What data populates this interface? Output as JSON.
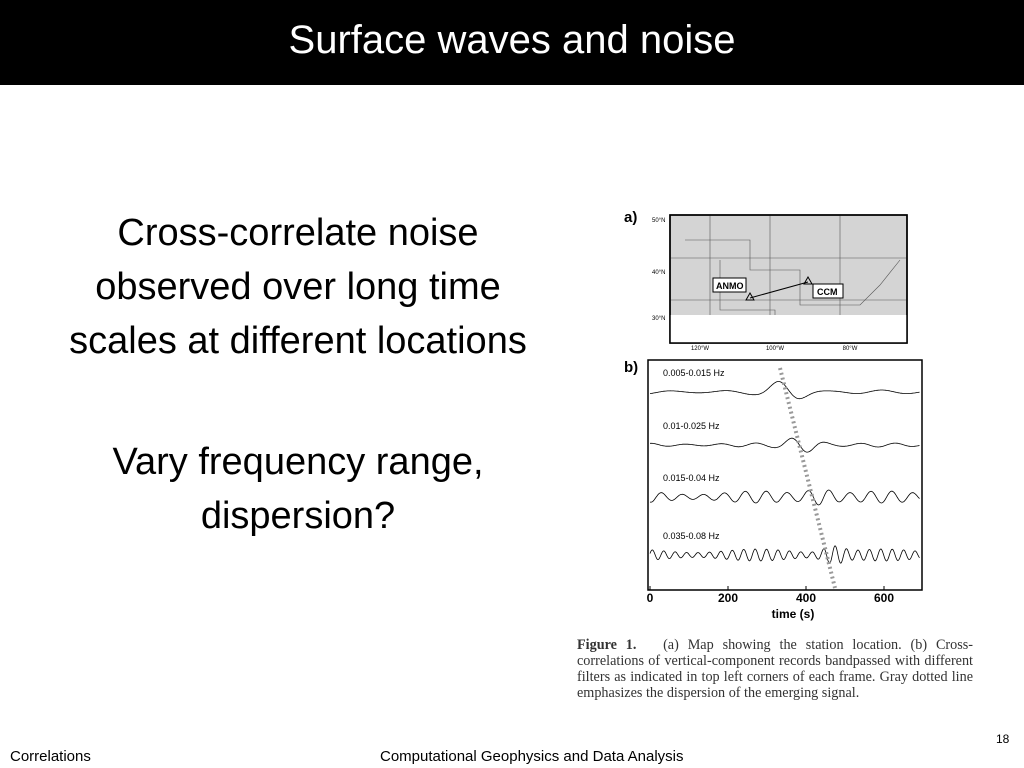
{
  "header": {
    "title": "Surface waves and noise"
  },
  "body": {
    "paragraphs": [
      "Cross-correlate noise observed over long time scales at different locations",
      "Vary frequency range, dispersion?"
    ]
  },
  "figure": {
    "panel_a": {
      "label": "a)",
      "lat_labels": [
        "50°N",
        "40°N",
        "30°N"
      ],
      "lon_labels": [
        "120°W",
        "100°W",
        "80°W"
      ],
      "stations": [
        "ANMO",
        "CCM"
      ]
    },
    "panel_b": {
      "label": "b)",
      "traces": [
        "0.005-0.015 Hz",
        "0.01-0.025 Hz",
        "0.015-0.04 Hz",
        "0.035-0.08 Hz"
      ],
      "xticks": [
        "0",
        "200",
        "400",
        "600"
      ],
      "xlabel": "time (s)"
    },
    "caption": {
      "lead": "Figure 1.",
      "text": "(a) Map showing the station location. (b) Cross-correlations of vertical-component records bandpassed with different filters as indicated in top left corners of each frame. Gray dotted line emphasizes the dispersion of the emerging signal."
    }
  },
  "footer": {
    "left": "Correlations",
    "center": "Computational Geophysics and Data Analysis",
    "page": "18"
  }
}
